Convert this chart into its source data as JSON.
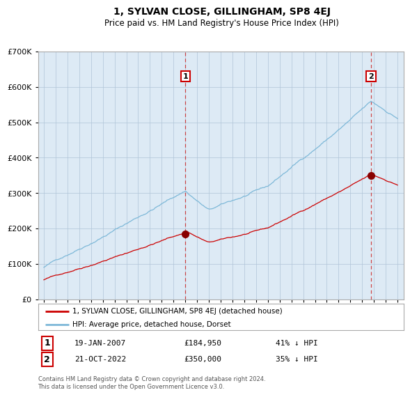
{
  "title": "1, SYLVAN CLOSE, GILLINGHAM, SP8 4EJ",
  "subtitle": "Price paid vs. HM Land Registry's House Price Index (HPI)",
  "legend_line1": "1, SYLVAN CLOSE, GILLINGHAM, SP8 4EJ (detached house)",
  "legend_line2": "HPI: Average price, detached house, Dorset",
  "sale1_date": "19-JAN-2007",
  "sale1_price": 184950,
  "sale1_note": "41% ↓ HPI",
  "sale2_date": "21-OCT-2022",
  "sale2_price": 350000,
  "sale2_note": "35% ↓ HPI",
  "footer": "Contains HM Land Registry data © Crown copyright and database right 2024.\nThis data is licensed under the Open Government Licence v3.0.",
  "hpi_color": "#7db8d8",
  "price_color": "#cc0000",
  "bg_color": "#ddeaf5",
  "plot_bg": "#ffffff",
  "grid_color": "#b0c4d8",
  "sale_marker_color": "#880000",
  "vline_color": "#cc3333",
  "ylim": [
    0,
    700000
  ],
  "yticks": [
    0,
    100000,
    200000,
    300000,
    400000,
    500000,
    600000,
    700000
  ],
  "start_year": 1995,
  "end_year": 2025
}
